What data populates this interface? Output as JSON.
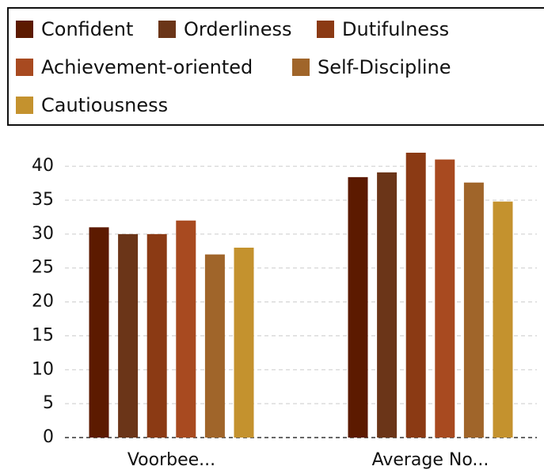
{
  "chart_data": {
    "type": "bar",
    "categories": [
      "Voorbee...",
      "Average No..."
    ],
    "series": [
      {
        "name": "Confident",
        "color": "#5c1a00",
        "values": [
          31,
          38.4
        ]
      },
      {
        "name": "Orderliness",
        "color": "#6b3518",
        "values": [
          30,
          39.1
        ]
      },
      {
        "name": "Dutifulness",
        "color": "#8b3a14",
        "values": [
          30,
          42
        ]
      },
      {
        "name": "Achievement-oriented",
        "color": "#a84a20",
        "values": [
          32,
          41
        ]
      },
      {
        "name": "Self-Discipline",
        "color": "#a0652a",
        "values": [
          27,
          37.6
        ]
      },
      {
        "name": "Cautiousness",
        "color": "#c4922e",
        "values": [
          28,
          34.8
        ]
      }
    ],
    "ylim": [
      0,
      42
    ],
    "yticks": [
      0,
      5,
      10,
      15,
      20,
      25,
      30,
      35,
      40
    ],
    "grid": true,
    "legend": "top"
  }
}
